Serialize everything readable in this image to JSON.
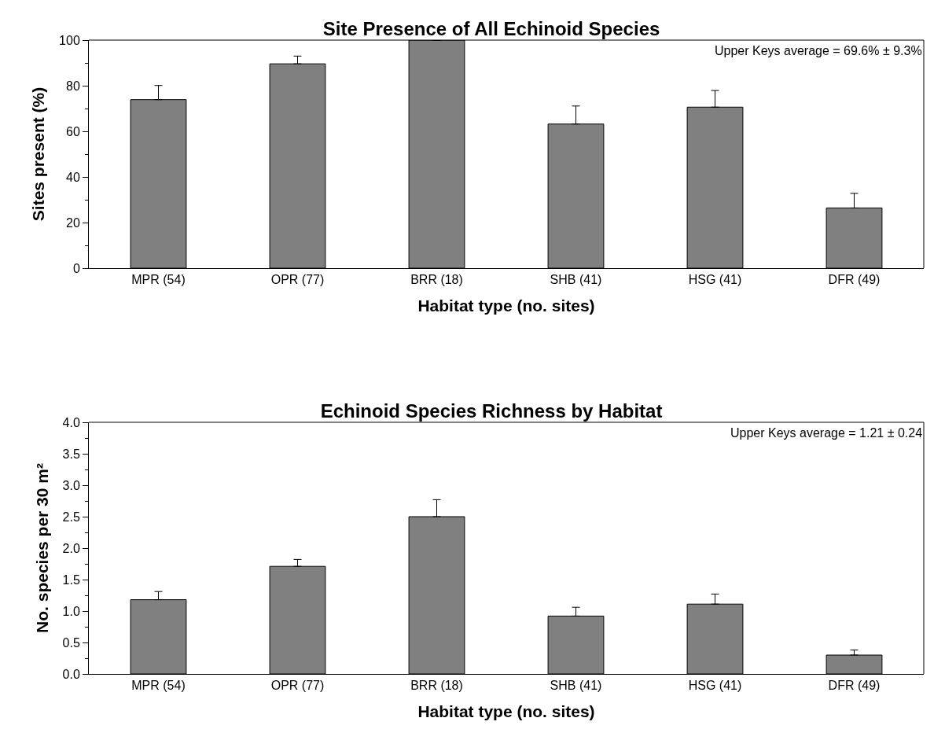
{
  "chart_data": [
    {
      "type": "bar",
      "title": "Site Presence of All Echinoid Species",
      "xlabel": "Habitat type (no. sites)",
      "ylabel": "Sites present (%)",
      "categories": [
        "MPR (54)",
        "OPR (77)",
        "BRR (18)",
        "SHB (41)",
        "HSG (41)",
        "DFR (49)"
      ],
      "values": [
        73.9,
        89.6,
        100,
        63.2,
        70.6,
        26.4
      ],
      "color": "#808080",
      "errors": [
        [
          73.9,
          80.1
        ],
        [
          89.6,
          93
        ],
        null,
        [
          63.2,
          71.1
        ],
        [
          70.6,
          77.9
        ],
        [
          26.4,
          32.8
        ]
      ],
      "ylim": [
        0,
        100
      ],
      "yticks": [
        0,
        20,
        40,
        60,
        80,
        100
      ],
      "annotations": [
        "Upper Keys average = 69.6% ± 9.3%"
      ]
    },
    {
      "type": "bar",
      "title": "Echinoid Species Richness by Habitat",
      "xlabel": "Habitat type (no. sites)",
      "ylabel": "No. species per 30 m²",
      "categories": [
        "MPR (54)",
        "OPR (77)",
        "BRR (18)",
        "SHB (41)",
        "HSG (41)",
        "DFR (49)"
      ],
      "values": [
        1.18,
        1.71,
        2.5,
        0.92,
        1.11,
        0.3
      ],
      "color": "#808080",
      "errors": [
        [
          1.18,
          1.31
        ],
        [
          1.71,
          1.82
        ],
        [
          2.5,
          2.77
        ],
        [
          0.92,
          1.06
        ],
        [
          1.11,
          1.27
        ],
        [
          0.3,
          0.38
        ]
      ],
      "ylim": [
        0,
        4
      ],
      "yticks": [
        {
          "value": 0,
          "label": "0.0"
        },
        {
          "value": 0.5,
          "label": "0.5"
        },
        {
          "value": 1,
          "label": "1.0"
        },
        {
          "value": 1.5,
          "label": "1.5"
        },
        {
          "value": 2,
          "label": "2.0"
        },
        {
          "value": 2.5,
          "label": "2.5"
        },
        {
          "value": 3,
          "label": "3.0"
        },
        {
          "value": 3.5,
          "label": "3.5"
        },
        {
          "value": 4,
          "label": "4.0"
        }
      ],
      "annotations": [
        "Upper Keys average = 1.21 ± 0.24"
      ]
    }
  ]
}
